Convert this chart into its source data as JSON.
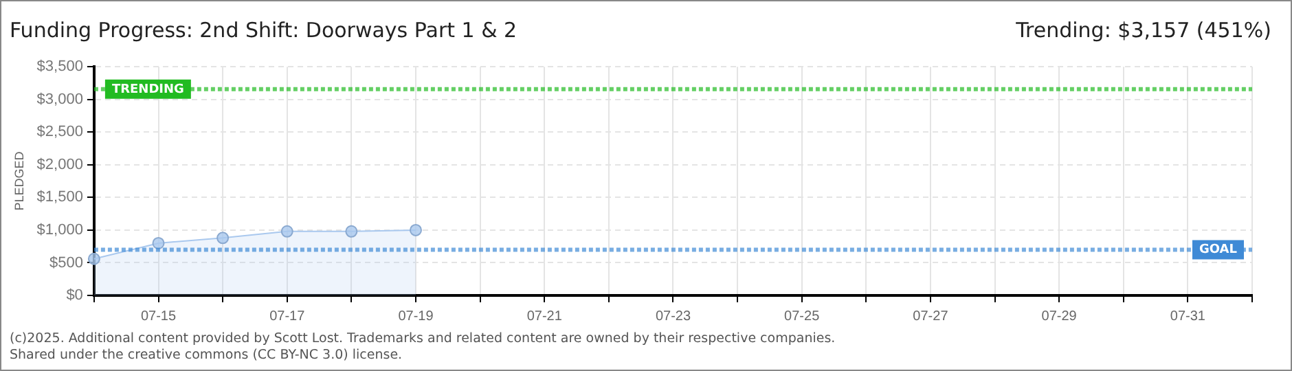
{
  "chart_data": {
    "type": "line",
    "title": "Funding Progress: 2nd Shift: Doorways Part 1 & 2",
    "subtitle": "Trending: $3,157 (451%)",
    "ylabel": "PLEDGED",
    "categories": [
      null,
      "07-15",
      null,
      "07-17",
      null,
      "07-19",
      null,
      "07-21",
      null,
      "07-23",
      null,
      "07-25",
      null,
      "07-27",
      null,
      "07-29",
      null,
      "07-31",
      null
    ],
    "series": [
      {
        "type": "area",
        "color": "#a9c8ee",
        "values": [
          560,
          800,
          880,
          980,
          980,
          1000,
          null,
          null,
          null,
          null,
          null,
          null,
          null,
          null,
          null,
          null,
          null,
          null,
          null
        ]
      }
    ],
    "ylim": [
      0,
      3500
    ],
    "yticks": [
      {
        "value": 0,
        "label": "$0"
      },
      {
        "value": 500,
        "label": "$500"
      },
      {
        "value": 1000,
        "label": "$1,000"
      },
      {
        "value": 1500,
        "label": "$1,500"
      },
      {
        "value": 2000,
        "label": "$2,000"
      },
      {
        "value": 2500,
        "label": "$2,500"
      },
      {
        "value": 3000,
        "label": "$3,000"
      },
      {
        "value": 3500,
        "label": "$3,500"
      }
    ],
    "ref_lines": [
      {
        "axis": "y",
        "value": 3157,
        "label": "TRENDING",
        "color": "#22bb22",
        "line_style": "dotted"
      },
      {
        "axis": "y",
        "value": 700,
        "label": "GOAL",
        "color": "#3f8ad6",
        "line_style": "dotted"
      }
    ],
    "grid": true,
    "legend": false,
    "marker": "circle",
    "annotations": [
      "(c)2025. Additional content provided by Scott Lost. Trademarks and related content are owned by their respective companies.",
      "Shared under the creative commons (CC BY-NC 3.0) license."
    ]
  }
}
